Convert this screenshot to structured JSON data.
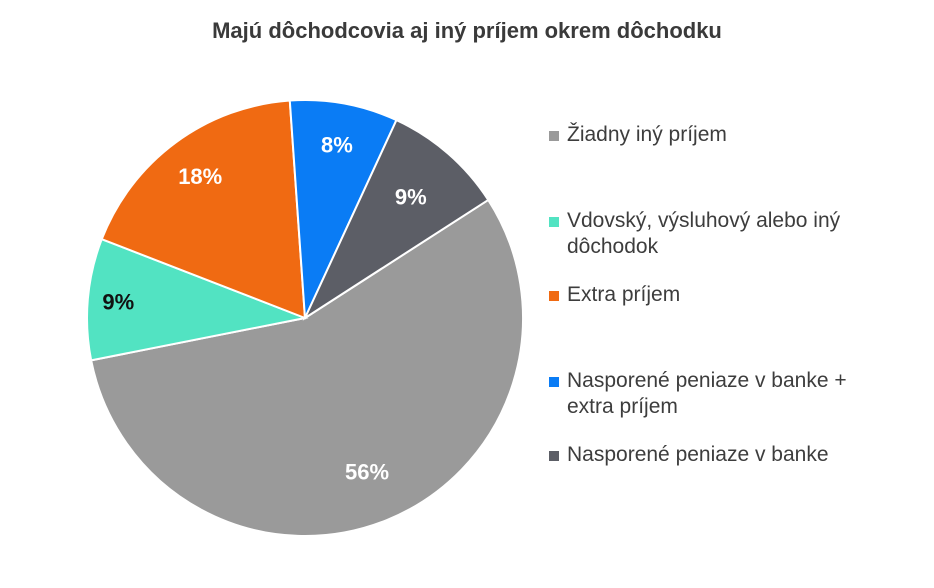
{
  "chart_data": {
    "type": "pie",
    "title": "Majú dôchodcovia aj iný príjem okrem dôchodku",
    "legend_position": "right",
    "slices": [
      {
        "label": "Žiadny iný príjem",
        "value": 56,
        "display": "56%",
        "color": "#9a9a9a",
        "label_color": "#ffffff"
      },
      {
        "label": "Vdovský, výsluhový alebo iný dôchodok",
        "value": 9,
        "display": "9%",
        "color": "#52e3c2",
        "label_color": "#111111"
      },
      {
        "label": "Extra príjem",
        "value": 18,
        "display": "18%",
        "color": "#f06a12",
        "label_color": "#ffffff"
      },
      {
        "label": "Nasporené peniaze v banke + extra príjem",
        "value": 8,
        "display": "8%",
        "color": "#0a7cf5",
        "label_color": "#ffffff"
      },
      {
        "label": "Nasporené peniaze v banke",
        "value": 9,
        "display": "9%",
        "color": "#5c5e66",
        "label_color": "#ffffff"
      }
    ]
  }
}
